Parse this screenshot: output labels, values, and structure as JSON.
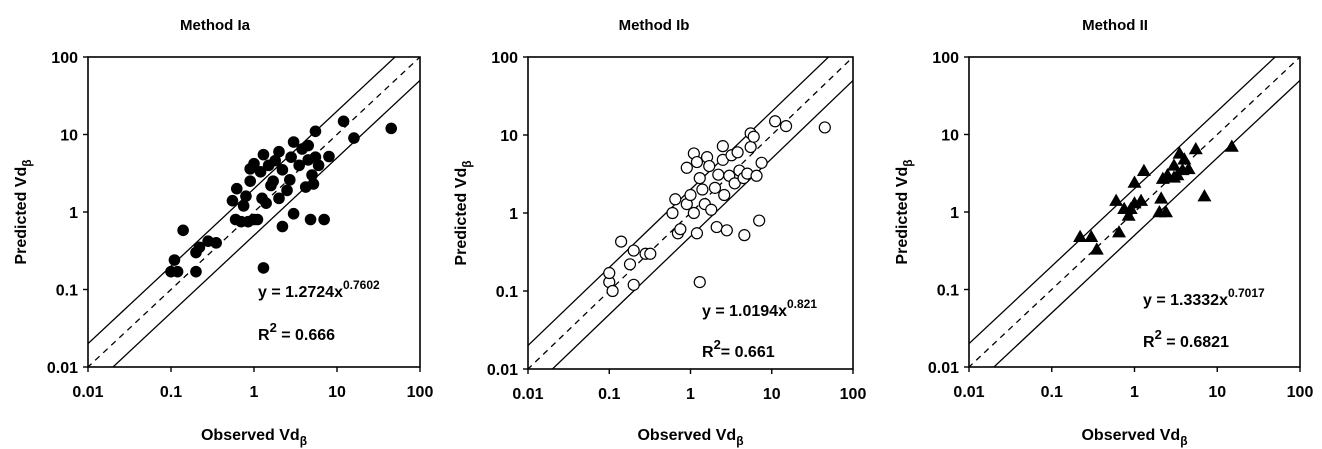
{
  "chart_data": [
    {
      "type": "scatter",
      "title": "Method Ia",
      "xlabel": "Observed Vdβ",
      "ylabel": "Predicted Vdβ",
      "xscale": "log",
      "yscale": "log",
      "xlim": [
        0.01,
        100
      ],
      "ylim": [
        0.01,
        100
      ],
      "x_ticks": [
        "0.01",
        "0.1",
        "1",
        "10",
        "100"
      ],
      "y_ticks": [
        "0.01",
        "0.1",
        "1",
        "10",
        "100"
      ],
      "marker": "filled-circle",
      "equation": {
        "prefix": "y = 1.2724x",
        "exponent": "0.7602"
      },
      "r2": {
        "prefix": "R",
        "exponent": "2",
        "suffix": " = 0.666"
      },
      "reference_lines": {
        "identity": true,
        "fold": 2
      },
      "points": [
        [
          0.1,
          0.17
        ],
        [
          0.11,
          0.24
        ],
        [
          0.12,
          0.17
        ],
        [
          0.14,
          0.58
        ],
        [
          0.2,
          0.17
        ],
        [
          0.2,
          0.3
        ],
        [
          0.22,
          0.35
        ],
        [
          0.28,
          0.42
        ],
        [
          0.35,
          0.4
        ],
        [
          0.55,
          1.4
        ],
        [
          0.6,
          0.8
        ],
        [
          0.62,
          2.0
        ],
        [
          0.7,
          0.75
        ],
        [
          0.75,
          1.2
        ],
        [
          0.8,
          1.6
        ],
        [
          0.85,
          0.75
        ],
        [
          0.9,
          3.6
        ],
        [
          0.9,
          2.5
        ],
        [
          1.0,
          4.2
        ],
        [
          1.0,
          0.8
        ],
        [
          1.1,
          0.8
        ],
        [
          1.2,
          3.3
        ],
        [
          1.25,
          1.5
        ],
        [
          1.3,
          5.5
        ],
        [
          1.3,
          0.19
        ],
        [
          1.4,
          1.3
        ],
        [
          1.5,
          4.0
        ],
        [
          1.6,
          2.2
        ],
        [
          1.7,
          2.5
        ],
        [
          1.8,
          4.6
        ],
        [
          2.0,
          1.5
        ],
        [
          2.0,
          6.0
        ],
        [
          2.2,
          0.65
        ],
        [
          2.2,
          3.5
        ],
        [
          2.5,
          1.9
        ],
        [
          2.7,
          2.6
        ],
        [
          2.8,
          5.1
        ],
        [
          3.0,
          0.95
        ],
        [
          3.0,
          8.0
        ],
        [
          3.5,
          4.0
        ],
        [
          3.8,
          6.5
        ],
        [
          4.2,
          2.1
        ],
        [
          4.5,
          4.7
        ],
        [
          4.5,
          7.2
        ],
        [
          4.8,
          0.8
        ],
        [
          5.0,
          3.0
        ],
        [
          5.2,
          2.3
        ],
        [
          5.5,
          11.0
        ],
        [
          5.5,
          5.1
        ],
        [
          6.0,
          4.0
        ],
        [
          7.0,
          0.8
        ],
        [
          8.0,
          5.2
        ],
        [
          12.0,
          14.8
        ],
        [
          16.0,
          9.0
        ],
        [
          45.0,
          12.0
        ]
      ]
    },
    {
      "type": "scatter",
      "title": "Method Ib",
      "xlabel": "Observed Vdβ",
      "ylabel": "Predicted Vdβ",
      "xscale": "log",
      "yscale": "log",
      "xlim": [
        0.01,
        100
      ],
      "ylim": [
        0.01,
        100
      ],
      "x_ticks": [
        "0.01",
        "0.1",
        "1",
        "10",
        "100"
      ],
      "y_ticks": [
        "0.01",
        "0.1",
        "1",
        "10",
        "100"
      ],
      "marker": "open-circle",
      "equation": {
        "prefix": "y = 1.0194x",
        "exponent": "0.821"
      },
      "r2": {
        "prefix": "R",
        "exponent": "2",
        "suffix": "= 0.661"
      },
      "reference_lines": {
        "identity": true,
        "fold": 2
      },
      "points": [
        [
          0.1,
          0.13
        ],
        [
          0.1,
          0.17
        ],
        [
          0.11,
          0.1
        ],
        [
          0.14,
          0.43
        ],
        [
          0.18,
          0.22
        ],
        [
          0.2,
          0.12
        ],
        [
          0.2,
          0.33
        ],
        [
          0.28,
          0.3
        ],
        [
          0.32,
          0.3
        ],
        [
          0.6,
          1.0
        ],
        [
          0.65,
          1.5
        ],
        [
          0.7,
          0.55
        ],
        [
          0.75,
          0.62
        ],
        [
          0.9,
          3.8
        ],
        [
          0.9,
          1.3
        ],
        [
          1.0,
          1.7
        ],
        [
          1.1,
          1.0
        ],
        [
          1.1,
          5.8
        ],
        [
          1.2,
          4.5
        ],
        [
          1.2,
          0.55
        ],
        [
          1.3,
          2.8
        ],
        [
          1.3,
          0.13
        ],
        [
          1.4,
          2.0
        ],
        [
          1.5,
          1.3
        ],
        [
          1.6,
          5.2
        ],
        [
          1.7,
          4.0
        ],
        [
          1.8,
          1.1
        ],
        [
          2.0,
          2.1
        ],
        [
          2.1,
          0.66
        ],
        [
          2.2,
          3.1
        ],
        [
          2.5,
          7.2
        ],
        [
          2.5,
          4.8
        ],
        [
          2.6,
          1.7
        ],
        [
          2.8,
          0.6
        ],
        [
          3.0,
          3.0
        ],
        [
          3.2,
          5.5
        ],
        [
          3.5,
          2.4
        ],
        [
          3.8,
          6.0
        ],
        [
          4.0,
          3.5
        ],
        [
          4.5,
          2.8
        ],
        [
          4.6,
          0.52
        ],
        [
          5.0,
          3.2
        ],
        [
          5.5,
          10.5
        ],
        [
          5.5,
          7.0
        ],
        [
          6.0,
          9.5
        ],
        [
          6.5,
          3.0
        ],
        [
          7.0,
          0.8
        ],
        [
          7.5,
          4.4
        ],
        [
          11.0,
          15.0
        ],
        [
          15.0,
          13.0
        ],
        [
          45.0,
          12.5
        ]
      ]
    },
    {
      "type": "scatter",
      "title": "Method II",
      "xlabel": "Observed Vdβ",
      "ylabel": "Predicted Vdβ",
      "xscale": "log",
      "yscale": "log",
      "xlim": [
        0.01,
        100
      ],
      "ylim": [
        0.01,
        100
      ],
      "x_ticks": [
        "0.01",
        "0.1",
        "1",
        "10",
        "100"
      ],
      "y_ticks": [
        "0.01",
        "0.1",
        "1",
        "10",
        "100"
      ],
      "marker": "filled-triangle",
      "equation": {
        "prefix": "y = 1.3332x",
        "exponent": "0.7017"
      },
      "r2": {
        "prefix": "R",
        "exponent": "2",
        "suffix": " = 0.6821"
      },
      "reference_lines": {
        "identity": true,
        "fold": 2
      },
      "points": [
        [
          0.22,
          0.48
        ],
        [
          0.3,
          0.48
        ],
        [
          0.35,
          0.33
        ],
        [
          0.6,
          1.4
        ],
        [
          0.65,
          0.55
        ],
        [
          0.75,
          1.1
        ],
        [
          0.85,
          0.9
        ],
        [
          0.9,
          1.1
        ],
        [
          1.0,
          2.4
        ],
        [
          1.0,
          1.3
        ],
        [
          1.2,
          1.4
        ],
        [
          1.3,
          3.4
        ],
        [
          2.0,
          1.0
        ],
        [
          2.1,
          1.5
        ],
        [
          2.2,
          2.7
        ],
        [
          2.4,
          1.0
        ],
        [
          2.5,
          3.0
        ],
        [
          3.0,
          2.8
        ],
        [
          3.0,
          4.0
        ],
        [
          3.3,
          3.0
        ],
        [
          3.5,
          5.7
        ],
        [
          3.8,
          3.5
        ],
        [
          4.0,
          4.8
        ],
        [
          4.5,
          3.6
        ],
        [
          5.5,
          6.5
        ],
        [
          7.0,
          1.6
        ],
        [
          15.0,
          7.0
        ]
      ]
    }
  ]
}
